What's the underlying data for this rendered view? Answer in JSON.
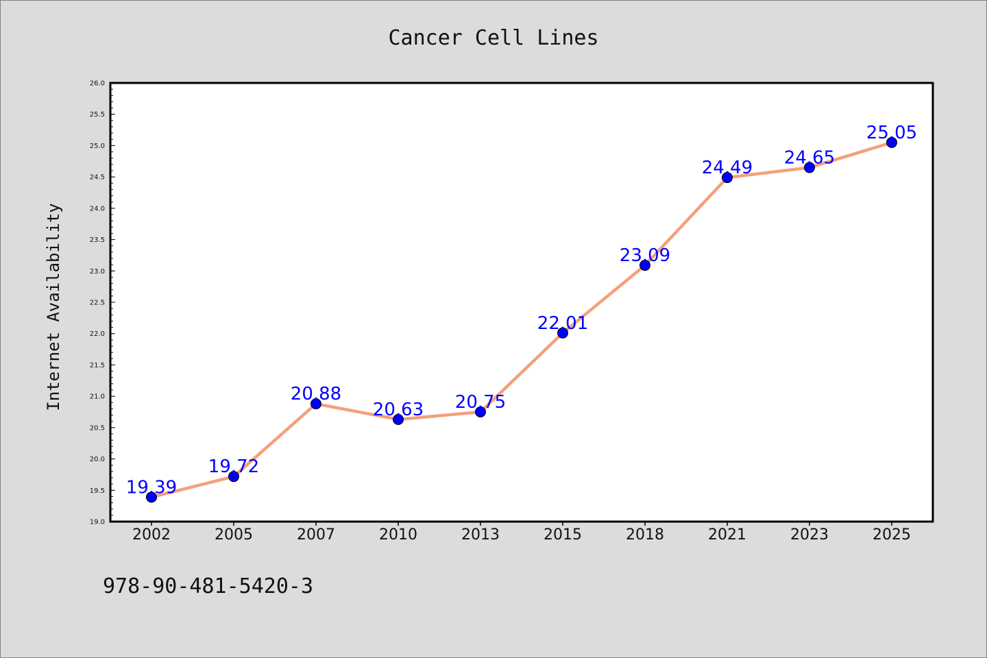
{
  "chart_data": {
    "type": "line",
    "title": "Cancer Cell Lines",
    "xlabel": "",
    "ylabel": "Internet Availability",
    "categories": [
      "2002",
      "2005",
      "2007",
      "2010",
      "2013",
      "2015",
      "2018",
      "2021",
      "2023",
      "2025"
    ],
    "series": [
      {
        "values": [
          19.39,
          19.72,
          20.88,
          20.63,
          20.75,
          22.01,
          23.09,
          24.49,
          24.65,
          25.05
        ],
        "line_color": "#f4a07a",
        "marker_color": "#0000ff",
        "label_color": "#0000ff"
      }
    ],
    "data_labels": [
      "19.39",
      "19.72",
      "20.88",
      "20.63",
      "20.75",
      "22.01",
      "23.09",
      "24.49",
      "24.65",
      "25.05"
    ],
    "ylim": [
      19.0,
      26.0
    ],
    "yticks": [
      "19.0",
      "19.5",
      "20.0",
      "20.5",
      "21.0",
      "21.5",
      "22.0",
      "22.5",
      "23.0",
      "23.5",
      "24.0",
      "24.5",
      "25.0",
      "25.5",
      "26.0"
    ],
    "grid": false,
    "legend": "none",
    "background_color": "#dcdcdc",
    "plot_background": "#ffffff"
  },
  "footer": {
    "text": "978-90-481-5420-3"
  }
}
